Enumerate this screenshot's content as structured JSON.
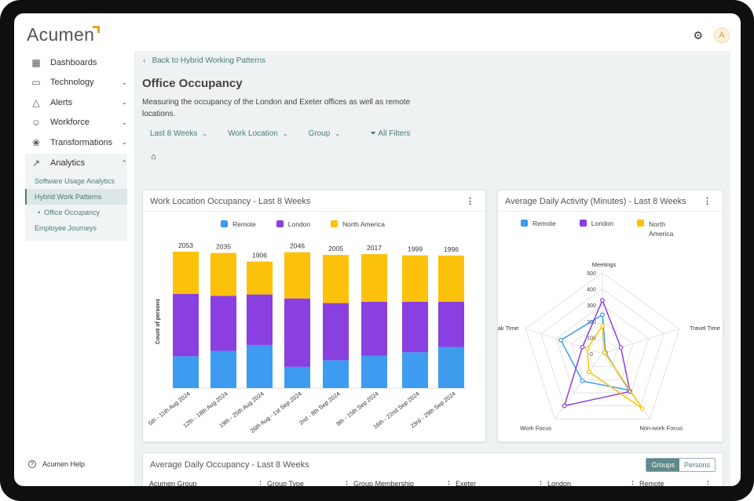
{
  "app": {
    "logo_text": "Acumen",
    "user_initial": "A",
    "accent": "#e8a31c"
  },
  "sidebar": {
    "items": [
      {
        "label": "Dashboards",
        "icon": "dashboard-icon"
      },
      {
        "label": "Technology",
        "icon": "monitor-icon"
      },
      {
        "label": "Alerts",
        "icon": "warning-icon"
      },
      {
        "label": "Workforce",
        "icon": "people-icon"
      },
      {
        "label": "Transformations",
        "icon": "network-icon"
      },
      {
        "label": "Analytics",
        "icon": "trend-icon"
      }
    ],
    "analytics_subitems": [
      "Software Usage Analytics",
      "Hybrid Work Patterns",
      "Office Occupancy",
      "Employee Journeys"
    ],
    "help": "Acumen Help"
  },
  "page": {
    "back_link": "Back to Hybrid Working Patterns",
    "title": "Office Occupancy",
    "description": "Measuring the occupancy of the London and Exeter offices as well as remote locations.",
    "filters": [
      "Last 8 Weeks",
      "Work Location",
      "Group"
    ],
    "all_filters": "All Filters"
  },
  "colors": {
    "remote": "#3d9bf0",
    "london": "#8a3fe0",
    "north_america": "#fcc10a"
  },
  "chart_data": [
    {
      "type": "bar",
      "title": "Work Location Occupancy - Last 8 Weeks",
      "ylabel": "Count of persons",
      "categories": [
        "5th - 11th Aug 2024",
        "12th - 18th Aug 2024",
        "19th - 25th Aug 2024",
        "26th Aug - 1st Sep 2024",
        "2nd - 8th Sep 2024",
        "9th - 15th Sep 2024",
        "16th - 22nd Sep 2024",
        "23rd - 29th Sep 2024"
      ],
      "totals": [
        2053,
        2035,
        1906,
        2046,
        2005,
        2017,
        1999,
        1996
      ],
      "series": [
        {
          "name": "Remote",
          "values": [
            480,
            560,
            650,
            320,
            420,
            490,
            540,
            620
          ]
        },
        {
          "name": "London",
          "values": [
            940,
            830,
            760,
            1030,
            860,
            810,
            760,
            680
          ]
        },
        {
          "name": "North America",
          "values": [
            633,
            645,
            496,
            696,
            725,
            717,
            699,
            696
          ]
        }
      ],
      "ylim": [
        0,
        2200
      ]
    },
    {
      "type": "radar",
      "title": "Average Daily Activity (Minutes) -  Last 8 Weeks",
      "axes": [
        "Meetings",
        "Travel Time",
        "Non-work Focus",
        "Work Focus",
        "Break Time"
      ],
      "ticks": [
        "0",
        "100",
        "200",
        "300",
        "400",
        "500"
      ],
      "rmax": 500,
      "series": [
        {
          "name": "Remote",
          "values": [
            240,
            20,
            280,
            210,
            270
          ]
        },
        {
          "name": "London",
          "values": [
            330,
            120,
            290,
            400,
            130
          ]
        },
        {
          "name": "North America",
          "values": [
            170,
            15,
            420,
            140,
            100
          ]
        }
      ]
    }
  ],
  "table": {
    "title": "Average Daily Occupancy - Last 8 Weeks",
    "toggle": [
      "Groups",
      "Persons"
    ],
    "columns": [
      "Acumen Group",
      "Group Type",
      "Group Membership",
      "Exeter",
      "London",
      "Remote"
    ]
  }
}
